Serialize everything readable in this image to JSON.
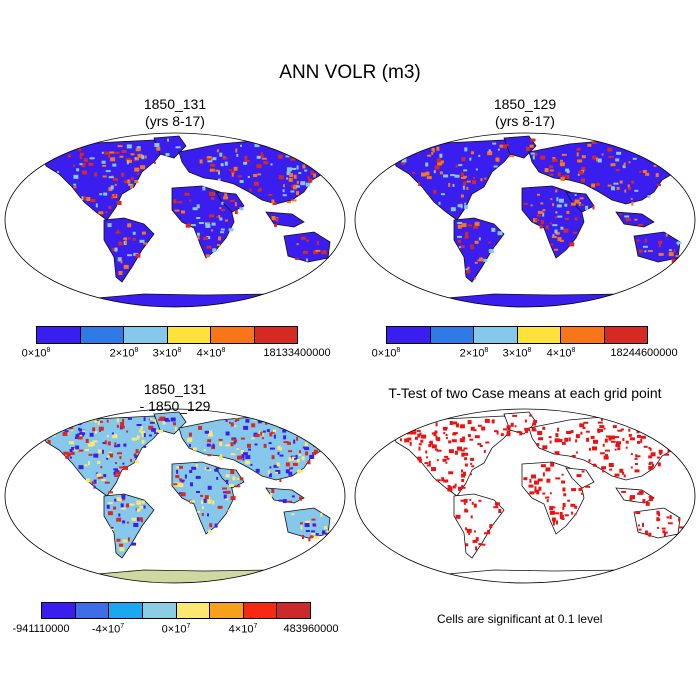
{
  "main_title": "ANN VOLR (m3)",
  "panels": [
    {
      "title_line1": "1850_131",
      "title_line2": "(yrs 8-17)"
    },
    {
      "title_line1": "1850_129",
      "title_line2": "(yrs 8-17)"
    },
    {
      "title_line1": "1850_131",
      "title_line2": "- 1850_129"
    },
    {
      "title_line1": "T-Test of two Case means at each grid point",
      "title_line2": ""
    }
  ],
  "colorbar_top": {
    "colors": [
      "#3a1ef0",
      "#2e7be8",
      "#86c8ec",
      "#fce23a",
      "#f77619",
      "#d42a23"
    ],
    "labels_left": {
      "mant": "0",
      "exp": "8"
    },
    "labels_mid": [
      {
        "mant": "2",
        "exp": "8"
      },
      {
        "mant": "3",
        "exp": "8"
      },
      {
        "mant": "4",
        "exp": "8"
      }
    ],
    "max_left": "18133400000",
    "max_right": "18244600000"
  },
  "colorbar_diff": {
    "colors": [
      "#3a1ef0",
      "#3e6ee6",
      "#1aa8f0",
      "#8ccde6",
      "#fce870",
      "#f5a21a",
      "#f42a12",
      "#cc2a2a"
    ],
    "label_min": "-941110000",
    "label_neg": {
      "mant": "-4",
      "exp": "7"
    },
    "label_zero": {
      "mant": "0",
      "exp": "7"
    },
    "label_pos": {
      "mant": "4",
      "exp": "7"
    },
    "label_max": "483960000"
  },
  "note": "Cells are significant at 0.1 level",
  "map_colors": {
    "land_top": "#3a1ef0",
    "hot_top": [
      "#d42a23",
      "#f77619",
      "#86c8ec"
    ],
    "diff_land": "#86c8ec",
    "diff_hot": [
      "#fce870",
      "#3a1ef0",
      "#d42a23"
    ],
    "signif": "#ee1111"
  }
}
